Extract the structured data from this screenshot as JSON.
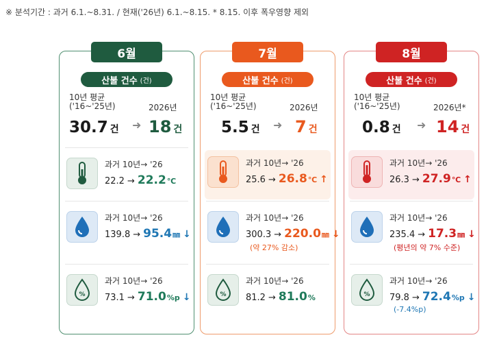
{
  "note": "※ 분석기간 : 과거 6.1.~8.31. / 현재('26년) 6.1.~8.15.  * 8.15. 이후 폭우영향 제외",
  "months": [
    {
      "month": "6월",
      "fires_label": "산불 건수",
      "fires_unit": "(건)",
      "avg_label": "10년 평균\n('16~'25년)",
      "avg_value": "30.7",
      "avg_unit": "건",
      "cur_label": "2026년",
      "cur_value": "18",
      "cur_unit": "건",
      "temp": {
        "label": "과거 10년→ '26",
        "old": "22.2",
        "new": "22.2",
        "unit": "℃",
        "dir": ""
      },
      "rain": {
        "label": "과거 10년→ '26",
        "old": "139.8",
        "new": "95.4",
        "unit": "㎜",
        "dir": "↓",
        "sub": ""
      },
      "hum": {
        "label": "과거 10년→ '26",
        "old": "73.1",
        "new": "71.0",
        "unit": "%p",
        "dir": "↓",
        "sub": ""
      }
    },
    {
      "month": "7월",
      "fires_label": "산불 건수",
      "fires_unit": "(건)",
      "avg_label": "10년 평균\n('16~'25년)",
      "avg_value": "5.5",
      "avg_unit": "건",
      "cur_label": "2026년",
      "cur_value": "7",
      "cur_unit": "건",
      "temp": {
        "label": "과거 10년→ '26",
        "old": "25.6",
        "new": "26.8",
        "unit": "℃",
        "dir": "↑"
      },
      "rain": {
        "label": "과거 10년→ '26",
        "old": "300.3",
        "new": "220.0",
        "unit": "㎜",
        "dir": "↓",
        "sub": "(약 27% 감소)"
      },
      "hum": {
        "label": "과거 10년→ '26",
        "old": "81.2",
        "new": "81.0",
        "unit": "%",
        "dir": "",
        "sub": ""
      }
    },
    {
      "month": "8월",
      "fires_label": "산불 건수",
      "fires_unit": "(건)",
      "avg_label": "10년 평균\n('16~'25년)",
      "avg_value": "0.8",
      "avg_unit": "건",
      "cur_label": "2026년*",
      "cur_value": "14",
      "cur_unit": "건",
      "temp": {
        "label": "과거 10년→ '26",
        "old": "26.3",
        "new": "27.9",
        "unit": "℃",
        "dir": "↑"
      },
      "rain": {
        "label": "과거 10년→ '26",
        "old": "235.4",
        "new": "17.3",
        "unit": "㎜",
        "dir": "↓",
        "sub": "(평년의 약 7% 수준)"
      },
      "hum": {
        "label": "과거 10년→ '26",
        "old": "79.8",
        "new": "72.4",
        "unit": "%p",
        "dir": "↓",
        "sub": "(-7.4%p)"
      }
    }
  ],
  "icons": {
    "temp": "thermometer-icon",
    "rain": "water-drop-icon",
    "hum": "humidity-drop-icon"
  },
  "colors": {
    "june": "#1f5b3f",
    "july": "#e9591e",
    "august": "#cf2323",
    "blue": "#1f77b4"
  }
}
